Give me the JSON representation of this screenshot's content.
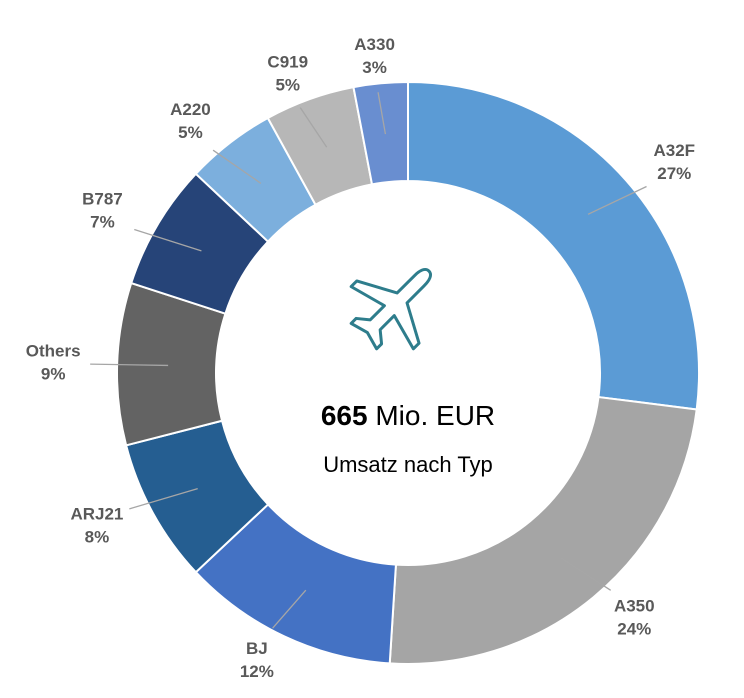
{
  "chart_data": {
    "type": "donut",
    "categories": [
      "A32F",
      "A350",
      "BJ",
      "ARJ21",
      "Others",
      "B787",
      "A220",
      "C919",
      "A330"
    ],
    "values": [
      27,
      24,
      12,
      8,
      9,
      7,
      5,
      5,
      3
    ],
    "value_labels": [
      "27%",
      "24%",
      "12%",
      "8%",
      "9%",
      "7%",
      "5%",
      "5%",
      "3%"
    ],
    "colors": [
      "#5b9bd5",
      "#a5a5a5",
      "#4472c4",
      "#255e91",
      "#636363",
      "#264478",
      "#7cafdd",
      "#b7b7b7",
      "#698ed0"
    ],
    "center_value": "665",
    "center_unit": "Mio. EUR",
    "center_caption": "Umsatz nach Typ"
  }
}
